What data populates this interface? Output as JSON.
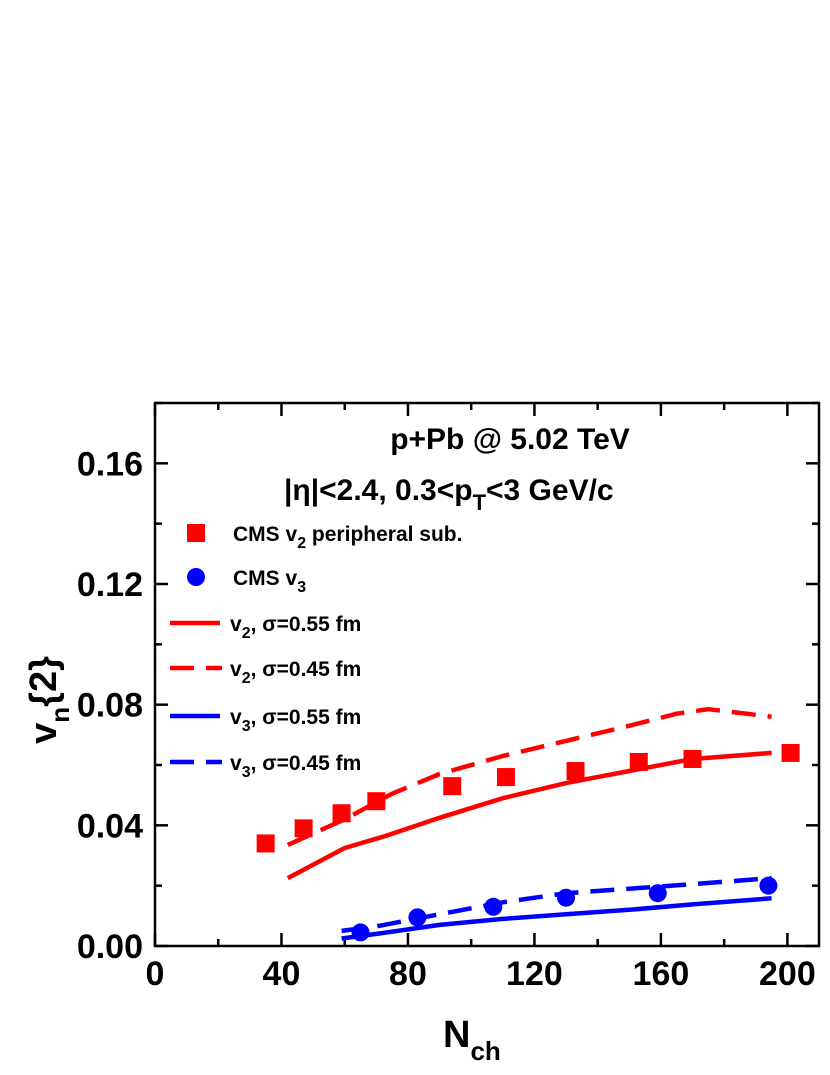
{
  "chart_data": {
    "type": "line",
    "xlabel": "N",
    "xlabel_sub": "ch",
    "ylabel": "v",
    "ylabel_sub": "n",
    "ylabel_suffix": "{2}",
    "xlim": [
      0,
      210
    ],
    "ylim": [
      0,
      0.18
    ],
    "x_ticks": [
      0,
      40,
      80,
      120,
      160,
      200
    ],
    "x_tick_labels": [
      "0",
      "40",
      "80",
      "120",
      "160",
      "200"
    ],
    "y_ticks": [
      0,
      0.04,
      0.08,
      0.12,
      0.16
    ],
    "y_tick_labels": [
      "0.00",
      "0.04",
      "0.08",
      "0.12",
      "0.16"
    ],
    "annotations": [
      {
        "text": "p+Pb @ 5.02 TeV"
      },
      {
        "text": "|η|<2.4, 0.3<p",
        "sub": "T",
        "tail": "<3 GeV/c"
      }
    ],
    "legend_position": "top-left",
    "series": [
      {
        "name": "CMS v",
        "name_sub": "2",
        "name_tail": " peripheral sub.",
        "style": "square",
        "color": "#ff0000",
        "x": [
          35,
          47,
          59,
          70,
          94,
          111,
          133,
          153,
          170,
          201
        ],
        "y": [
          0.034,
          0.039,
          0.044,
          0.048,
          0.053,
          0.056,
          0.058,
          0.061,
          0.062,
          0.064
        ]
      },
      {
        "name": "CMS v",
        "name_sub": "3",
        "name_tail": "",
        "style": "circle",
        "color": "#0000ff",
        "x": [
          65,
          83,
          107,
          130,
          159,
          194
        ],
        "y": [
          0.0045,
          0.0095,
          0.013,
          0.016,
          0.0175,
          0.02
        ]
      },
      {
        "name": "v",
        "name_sub": "2",
        "name_tail": ", σ=0.55 fm",
        "style": "solid",
        "color": "#ff0000",
        "x": [
          42,
          60,
          73,
          90,
          110,
          130,
          150,
          170,
          195
        ],
        "y": [
          0.0225,
          0.0325,
          0.0365,
          0.0425,
          0.049,
          0.054,
          0.058,
          0.062,
          0.064
        ]
      },
      {
        "name": "v",
        "name_sub": "2",
        "name_tail": ", σ=0.45 fm",
        "style": "dashed",
        "color": "#ff0000",
        "x": [
          42,
          60,
          75,
          90,
          110,
          130,
          150,
          165,
          175,
          195
        ],
        "y": [
          0.0335,
          0.042,
          0.0505,
          0.057,
          0.063,
          0.068,
          0.073,
          0.077,
          0.0785,
          0.076
        ]
      },
      {
        "name": "v",
        "name_sub": "3",
        "name_tail": ", σ=0.55 fm",
        "style": "solid",
        "color": "#0000ff",
        "x": [
          59,
          70,
          90,
          110,
          130,
          150,
          170,
          195
        ],
        "y": [
          0.0025,
          0.004,
          0.007,
          0.009,
          0.0105,
          0.012,
          0.0138,
          0.0158
        ]
      },
      {
        "name": "v",
        "name_sub": "3",
        "name_tail": ", σ=0.45 fm",
        "style": "dashed",
        "color": "#0000ff",
        "x": [
          59,
          70,
          90,
          110,
          130,
          150,
          170,
          195
        ],
        "y": [
          0.005,
          0.0065,
          0.0105,
          0.0145,
          0.0175,
          0.019,
          0.0205,
          0.0225
        ]
      }
    ]
  }
}
